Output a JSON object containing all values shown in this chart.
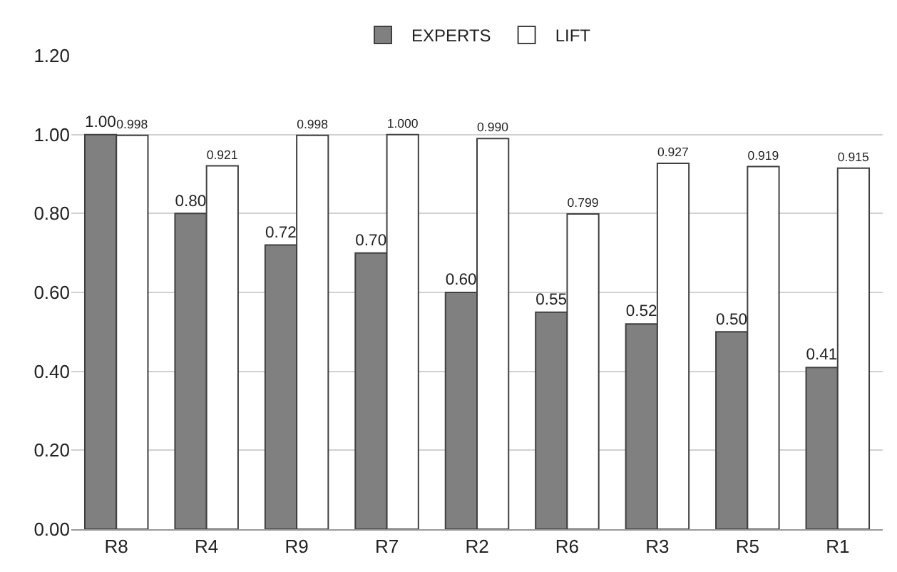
{
  "chart_data": {
    "type": "bar",
    "categories": [
      "R8",
      "R4",
      "R9",
      "R7",
      "R2",
      "R6",
      "R3",
      "R5",
      "R1"
    ],
    "series": [
      {
        "name": "EXPERTS",
        "color": "#808080",
        "values": [
          1.0,
          0.8,
          0.72,
          0.7,
          0.6,
          0.55,
          0.52,
          0.5,
          0.41
        ],
        "value_labels": [
          "1.00",
          "0.80",
          "0.72",
          "0.70",
          "0.60",
          "0.55",
          "0.52",
          "0.50",
          "0.41"
        ]
      },
      {
        "name": "LIFT",
        "color": "#ffffff",
        "values": [
          0.998,
          0.921,
          0.998,
          1.0,
          0.99,
          0.799,
          0.927,
          0.919,
          0.915
        ],
        "value_labels": [
          "0.998",
          "0.921",
          "0.998",
          "1.000",
          "0.990",
          "0.799",
          "0.927",
          "0.919",
          "0.915"
        ]
      }
    ],
    "ylim": [
      0,
      1.2
    ],
    "yticks": [
      {
        "value": 0,
        "label": "0.00"
      },
      {
        "value": 0.2,
        "label": "0.20"
      },
      {
        "value": 0.4,
        "label": "0.40"
      },
      {
        "value": 0.6,
        "label": "0.60"
      },
      {
        "value": 0.8,
        "label": "0.80"
      },
      {
        "value": 1.0,
        "label": "1.00"
      },
      {
        "value": 1.2,
        "label": "1.20"
      }
    ],
    "grid": "y",
    "legend": "top"
  }
}
